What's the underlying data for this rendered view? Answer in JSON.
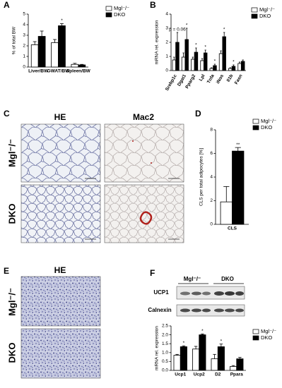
{
  "figure": {
    "panel_labels": [
      "A",
      "B",
      "C",
      "D",
      "E",
      "F"
    ],
    "C": {
      "columns": [
        "HE",
        "Mac2"
      ],
      "rows": [
        "Mgl⁻/⁻",
        "DKO"
      ]
    },
    "E": {
      "title": "HE",
      "rows": [
        "Mgl⁻/⁻",
        "DKO"
      ]
    },
    "F_blot": {
      "groups": [
        "Mgl⁻/⁻",
        "DKO"
      ],
      "bands": [
        "UCP1",
        "Calnexin"
      ]
    }
  },
  "chart_data": [
    {
      "type": "bar",
      "y_label": "% of total BW",
      "categories": [
        "Liver/BW",
        "GWAT/BW",
        "Spleen/BW"
      ],
      "series": [
        {
          "name": "Mgl⁻/⁻",
          "color": "#ffffff",
          "values": [
            2.1,
            2.3,
            0.25
          ],
          "errors": [
            0.3,
            0.3,
            0.1
          ]
        },
        {
          "name": "DKO",
          "color": "#000000",
          "values": [
            2.9,
            3.9,
            0.2
          ],
          "errors": [
            0.5,
            0.2,
            0.05
          ]
        }
      ],
      "annotations": [
        "*"
      ],
      "ylim": [
        0,
        5
      ],
      "yticks": [
        0,
        1,
        2,
        3,
        4,
        5
      ]
    },
    {
      "type": "bar",
      "y_label": "mRNA rel. expression",
      "categories": [
        "Srebp1c",
        "Dgat1",
        "Pparg2",
        "Lpl",
        "Tnfa",
        "iNos",
        "Il1b",
        "Fasn"
      ],
      "series": [
        {
          "name": "Mgl⁻/⁻",
          "color": "#ffffff",
          "values": [
            0.75,
            0.95,
            0.8,
            0.7,
            0.15,
            1.2,
            0.15,
            0.5
          ],
          "errors": [
            0.2,
            0.3,
            0.15,
            0.15,
            0.05,
            0.2,
            0.05,
            0.1
          ]
        },
        {
          "name": "DKO",
          "color": "#000000",
          "values": [
            2.0,
            2.2,
            1.3,
            1.25,
            0.35,
            2.4,
            0.3,
            0.65
          ],
          "errors": [
            0.7,
            0.8,
            0.3,
            0.2,
            0.1,
            0.3,
            0.1,
            0.1
          ]
        }
      ],
      "annotations": [
        "p = 0.06",
        "*",
        "*",
        "*",
        "*",
        "*",
        "*"
      ],
      "ylim": [
        0,
        4
      ],
      "yticks": [
        0,
        1,
        2,
        3,
        4
      ]
    },
    {
      "type": "bar",
      "y_label": "CLS per total adipocytes [%]",
      "categories": [
        "CLS"
      ],
      "series": [
        {
          "name": "Mgl⁻/⁻",
          "color": "#ffffff",
          "values": [
            1.9
          ],
          "errors": [
            1.3
          ]
        },
        {
          "name": "DKO",
          "color": "#000000",
          "values": [
            6.2
          ],
          "errors": [
            0.3
          ]
        }
      ],
      "annotations": [
        "**"
      ],
      "ylim": [
        0,
        8
      ],
      "yticks": [
        0,
        2,
        4,
        6,
        8
      ]
    },
    {
      "type": "bar",
      "y_label": "mRNA rel. expression",
      "categories": [
        "Ucp1",
        "Ucp2",
        "D2",
        "Ppara"
      ],
      "series": [
        {
          "name": "Mgl⁻/⁻",
          "color": "#ffffff",
          "values": [
            0.85,
            1.2,
            0.65,
            0.22
          ],
          "errors": [
            0.05,
            0.15,
            0.25,
            0.05
          ]
        },
        {
          "name": "DKO",
          "color": "#000000",
          "values": [
            1.33,
            2.0,
            1.33,
            0.65
          ],
          "errors": [
            0.05,
            0.05,
            0.15,
            0.08
          ]
        }
      ],
      "annotations": [
        "*",
        "*",
        "*"
      ],
      "ylim": [
        0,
        2.5
      ],
      "yticks": [
        {
          "value": 0,
          "label": "0.0"
        },
        0.5,
        {
          "value": 1,
          "label": "1.0"
        },
        1.5,
        {
          "value": 2,
          "label": "2.0"
        },
        2.5
      ]
    }
  ]
}
